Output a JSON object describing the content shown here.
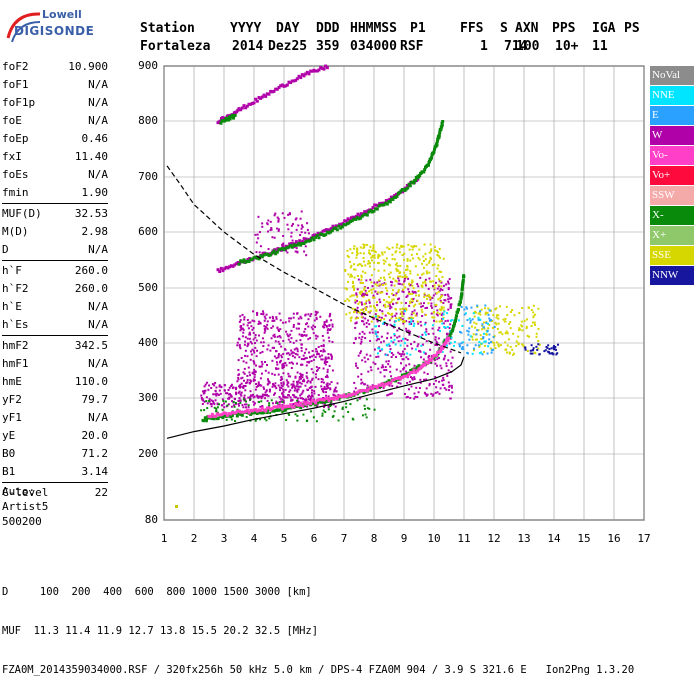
{
  "logo": {
    "line1": "Lowell",
    "line2": "DIGISONDE"
  },
  "header": {
    "labels": [
      "Station",
      "YYYY",
      "DAY",
      "DDD",
      "HHMMSS",
      "P1",
      "FFS",
      "S",
      "AXN",
      "PPS",
      "IGA",
      "PS"
    ],
    "values": [
      "Fortaleza",
      "2014",
      "Dez25",
      "359",
      "034000",
      "RSF",
      "1",
      "714",
      "100",
      "10+",
      "11"
    ]
  },
  "params": {
    "group1": [
      {
        "k": "foF2",
        "v": "10.900"
      },
      {
        "k": "foF1",
        "v": "N/A"
      },
      {
        "k": "foF1p",
        "v": "N/A"
      },
      {
        "k": "foE",
        "v": "N/A"
      },
      {
        "k": "foEp",
        "v": "0.46"
      },
      {
        "k": "fxI",
        "v": "11.40"
      },
      {
        "k": "foEs",
        "v": "N/A"
      },
      {
        "k": "fmin",
        "v": "1.90"
      }
    ],
    "group2": [
      {
        "k": "MUF(D)",
        "v": "32.53"
      },
      {
        "k": "M(D)",
        "v": "2.98"
      },
      {
        "k": "D",
        "v": "N/A"
      }
    ],
    "group3": [
      {
        "k": "h`F",
        "v": "260.0"
      },
      {
        "k": "h`F2",
        "v": "260.0"
      },
      {
        "k": "h`E",
        "v": "N/A"
      },
      {
        "k": "h`Es",
        "v": "N/A"
      }
    ],
    "group4": [
      {
        "k": "hmF2",
        "v": "342.5"
      },
      {
        "k": "hmF1",
        "v": "N/A"
      },
      {
        "k": "hmE",
        "v": "110.0"
      },
      {
        "k": "yF2",
        "v": "79.7"
      },
      {
        "k": "yF1",
        "v": "N/A"
      },
      {
        "k": "yE",
        "v": "20.0"
      },
      {
        "k": "B0",
        "v": "71.2"
      },
      {
        "k": "B1",
        "v": "3.14"
      }
    ],
    "group5": [
      {
        "k": "C-level",
        "v": "22"
      }
    ]
  },
  "auto": {
    "line1": "Auto:",
    "line2": "Artist5",
    "line3": "500200"
  },
  "legend": [
    {
      "label": "NoVal",
      "color": "#8c8c8c"
    },
    {
      "label": "NNE",
      "color": "#00e5ff"
    },
    {
      "label": "E",
      "color": "#2aa0ff"
    },
    {
      "label": "W",
      "color": "#b000a8"
    },
    {
      "label": "Vo-",
      "color": "#ff3fc8"
    },
    {
      "label": "Vo+",
      "color": "#ff0a3c"
    },
    {
      "label": "SSW",
      "color": "#f5aaaa"
    },
    {
      "label": "X-",
      "color": "#0a8a0a"
    },
    {
      "label": "X+",
      "color": "#8fc86a"
    },
    {
      "label": "SSE",
      "color": "#d7d700"
    },
    {
      "label": "NNW",
      "color": "#16169e"
    }
  ],
  "chart_data": {
    "type": "scatter",
    "xlim": [
      1,
      17
    ],
    "ylim": [
      80,
      900
    ],
    "x_ticks": [
      "1",
      "2",
      "3",
      "4",
      "5",
      "6",
      "7",
      "8",
      "9",
      "10",
      "11",
      "12",
      "13",
      "14",
      "15",
      "16",
      "17"
    ],
    "y_ticks": [
      "80",
      "200",
      "300",
      "400",
      "500",
      "600",
      "700",
      "800",
      "900"
    ],
    "y_tick_values": [
      80,
      200,
      300,
      400,
      500,
      600,
      700,
      800,
      900
    ],
    "grid": true,
    "traces": [
      {
        "name": "X-",
        "color": "#0a8a0a",
        "points": [
          [
            2.3,
            262
          ],
          [
            3,
            268
          ],
          [
            4,
            274
          ],
          [
            5,
            280
          ],
          [
            6,
            290
          ],
          [
            7,
            302
          ],
          [
            8,
            318
          ],
          [
            9,
            340
          ],
          [
            10,
            372
          ],
          [
            10.6,
            420
          ],
          [
            10.9,
            480
          ],
          [
            11,
            525
          ]
        ]
      },
      {
        "name": "Vo-",
        "color": "#ff3fc8",
        "points": [
          [
            2.5,
            268
          ],
          [
            3.5,
            274
          ],
          [
            4.5,
            280
          ],
          [
            5.5,
            288
          ],
          [
            6.5,
            298
          ],
          [
            7.5,
            310
          ],
          [
            8.5,
            328
          ],
          [
            9.5,
            352
          ],
          [
            10.2,
            385
          ],
          [
            10.5,
            410
          ]
        ]
      },
      {
        "name": "W",
        "color": "#b000a8",
        "points": [
          [
            2.8,
            530
          ],
          [
            3.8,
            550
          ],
          [
            4.8,
            568
          ],
          [
            5.8,
            588
          ],
          [
            6.8,
            612
          ],
          [
            7.8,
            640
          ],
          [
            8.8,
            668
          ],
          [
            9.5,
            700
          ]
        ]
      },
      {
        "name": "X-",
        "color": "#0a8a0a",
        "points": [
          [
            3.5,
            545
          ],
          [
            4.5,
            560
          ],
          [
            5.5,
            578
          ],
          [
            6.5,
            600
          ],
          [
            7.5,
            625
          ],
          [
            8.5,
            655
          ],
          [
            9.3,
            690
          ],
          [
            9.8,
            720
          ],
          [
            10.1,
            760
          ],
          [
            10.3,
            800
          ]
        ]
      },
      {
        "name": "W",
        "color": "#b000a8",
        "points": [
          [
            2.8,
            800
          ],
          [
            3.5,
            820
          ],
          [
            4.5,
            850
          ],
          [
            5.5,
            880
          ],
          [
            6.5,
            900
          ]
        ]
      },
      {
        "name": "X-",
        "color": "#0a8a0a",
        "points": [
          [
            2.9,
            798
          ],
          [
            3.4,
            810
          ]
        ]
      }
    ],
    "clouds": [
      {
        "color": "#b000a8",
        "x": [
          2.2,
          6.8
        ],
        "y": [
          285,
          330
        ],
        "n": 380
      },
      {
        "color": "#b000a8",
        "x": [
          3.4,
          6.6
        ],
        "y": [
          330,
          460
        ],
        "n": 460
      },
      {
        "color": "#b000a8",
        "x": [
          7.3,
          10.6
        ],
        "y": [
          300,
          520
        ],
        "n": 520
      },
      {
        "color": "#d7d700",
        "x": [
          7.0,
          10.3
        ],
        "y": [
          440,
          580
        ],
        "n": 420
      },
      {
        "color": "#d7d700",
        "x": [
          11.2,
          13.5
        ],
        "y": [
          380,
          470
        ],
        "n": 150
      },
      {
        "color": "#00e5ff",
        "x": [
          8.0,
          11.8
        ],
        "y": [
          380,
          460
        ],
        "n": 90
      },
      {
        "color": "#2aa0ff",
        "x": [
          10.8,
          12.0
        ],
        "y": [
          380,
          470
        ],
        "n": 60
      },
      {
        "color": "#16169e",
        "x": [
          13.0,
          14.1
        ],
        "y": [
          380,
          400
        ],
        "n": 40
      },
      {
        "color": "#0a8a0a",
        "x": [
          2.2,
          8.0
        ],
        "y": [
          260,
          300
        ],
        "n": 120
      },
      {
        "color": "#b000a8",
        "x": [
          4.0,
          5.8
        ],
        "y": [
          560,
          640
        ],
        "n": 80
      }
    ],
    "profile": [
      [
        1.1,
        228
      ],
      [
        2,
        240
      ],
      [
        3,
        250
      ],
      [
        4,
        262
      ],
      [
        5,
        272
      ],
      [
        6,
        282
      ],
      [
        7,
        294
      ],
      [
        8,
        308
      ],
      [
        9,
        322
      ],
      [
        10,
        335
      ],
      [
        10.6,
        348
      ],
      [
        10.9,
        360
      ],
      [
        11,
        375
      ]
    ],
    "muf_curve": [
      [
        1.1,
        720
      ],
      [
        1.5,
        690
      ],
      [
        2,
        650
      ],
      [
        3,
        600
      ],
      [
        4,
        560
      ],
      [
        5,
        528
      ],
      [
        6,
        500
      ],
      [
        7,
        470
      ],
      [
        8,
        445
      ],
      [
        9,
        422
      ],
      [
        10,
        400
      ],
      [
        10.9,
        382
      ]
    ]
  },
  "bottom": {
    "line1": "D     100  200  400  600  800 1000 1500 3000 [km]",
    "line2": "MUF  11.3 11.4 11.9 12.7 13.8 15.5 20.2 32.5 [MHz]",
    "line3": "FZA0M_2014359034000.RSF / 320fx256h 50 kHz 5.0 km / DPS-4 FZA0M 904 / 3.9 S 321.6 E   Ion2Png 1.3.20"
  }
}
